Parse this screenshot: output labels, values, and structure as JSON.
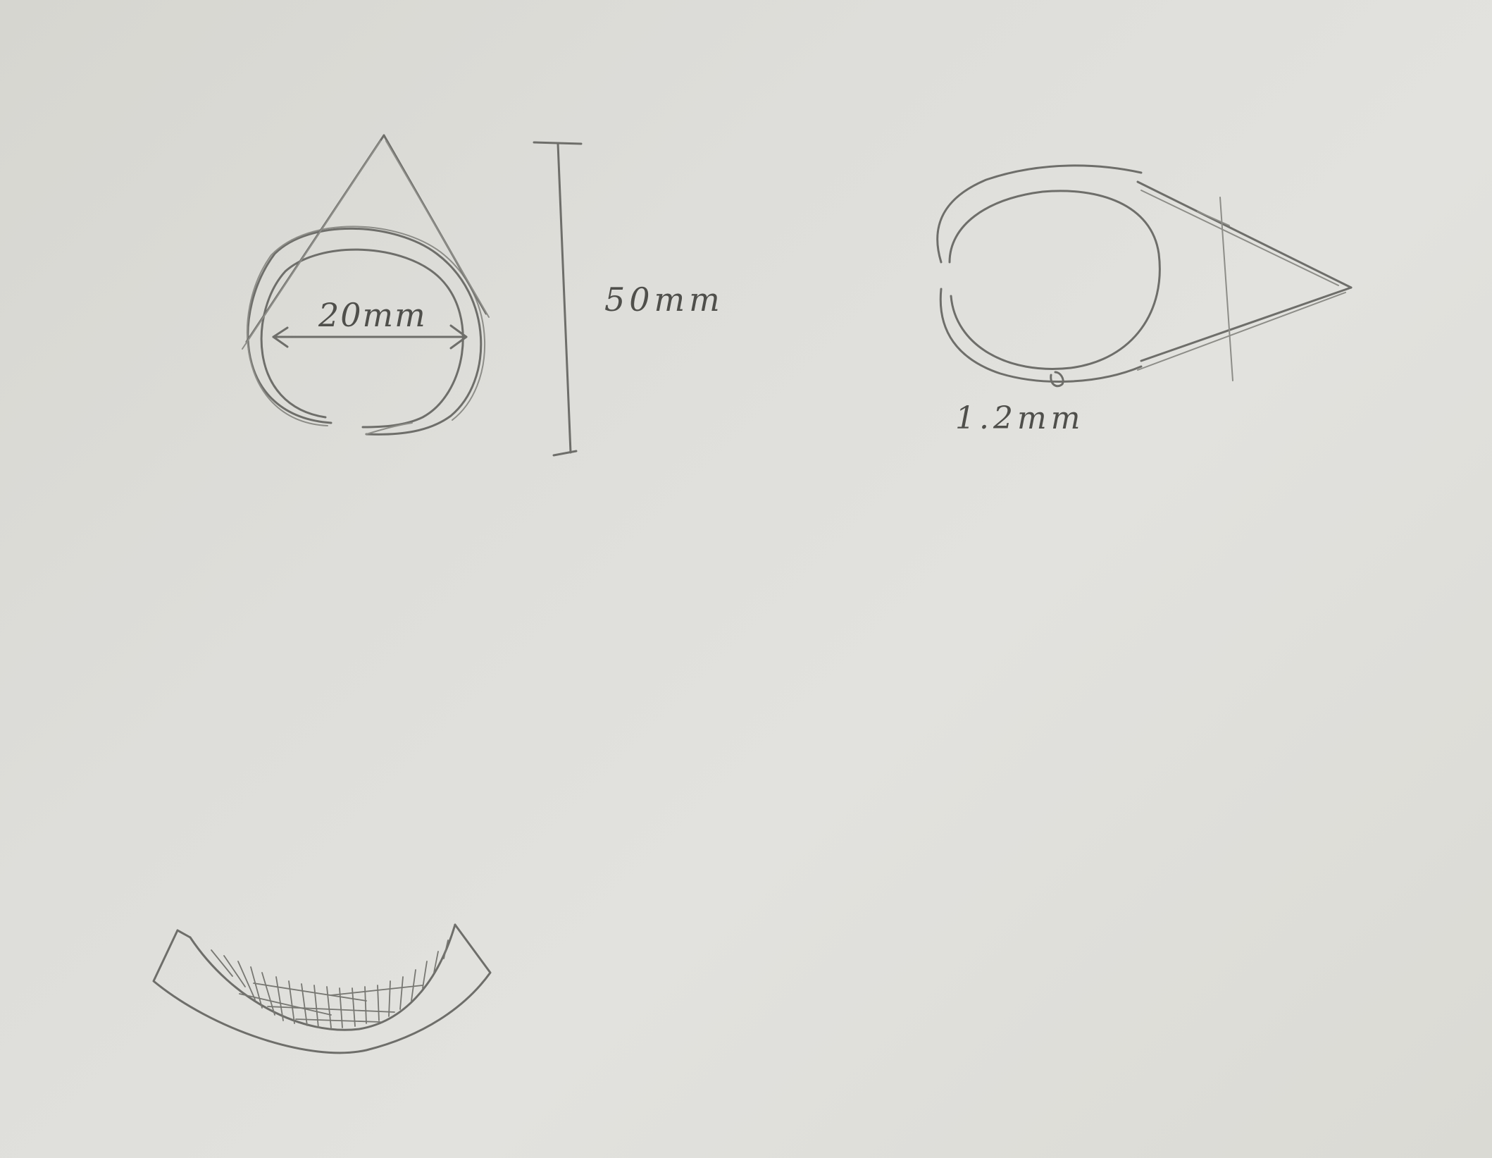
{
  "labels": {
    "inner_diameter": "20mm",
    "height": "50mm",
    "thickness": "1.2mm"
  },
  "colors": {
    "paper": "#dcdcd6",
    "pencil": "#6e6e6a"
  }
}
